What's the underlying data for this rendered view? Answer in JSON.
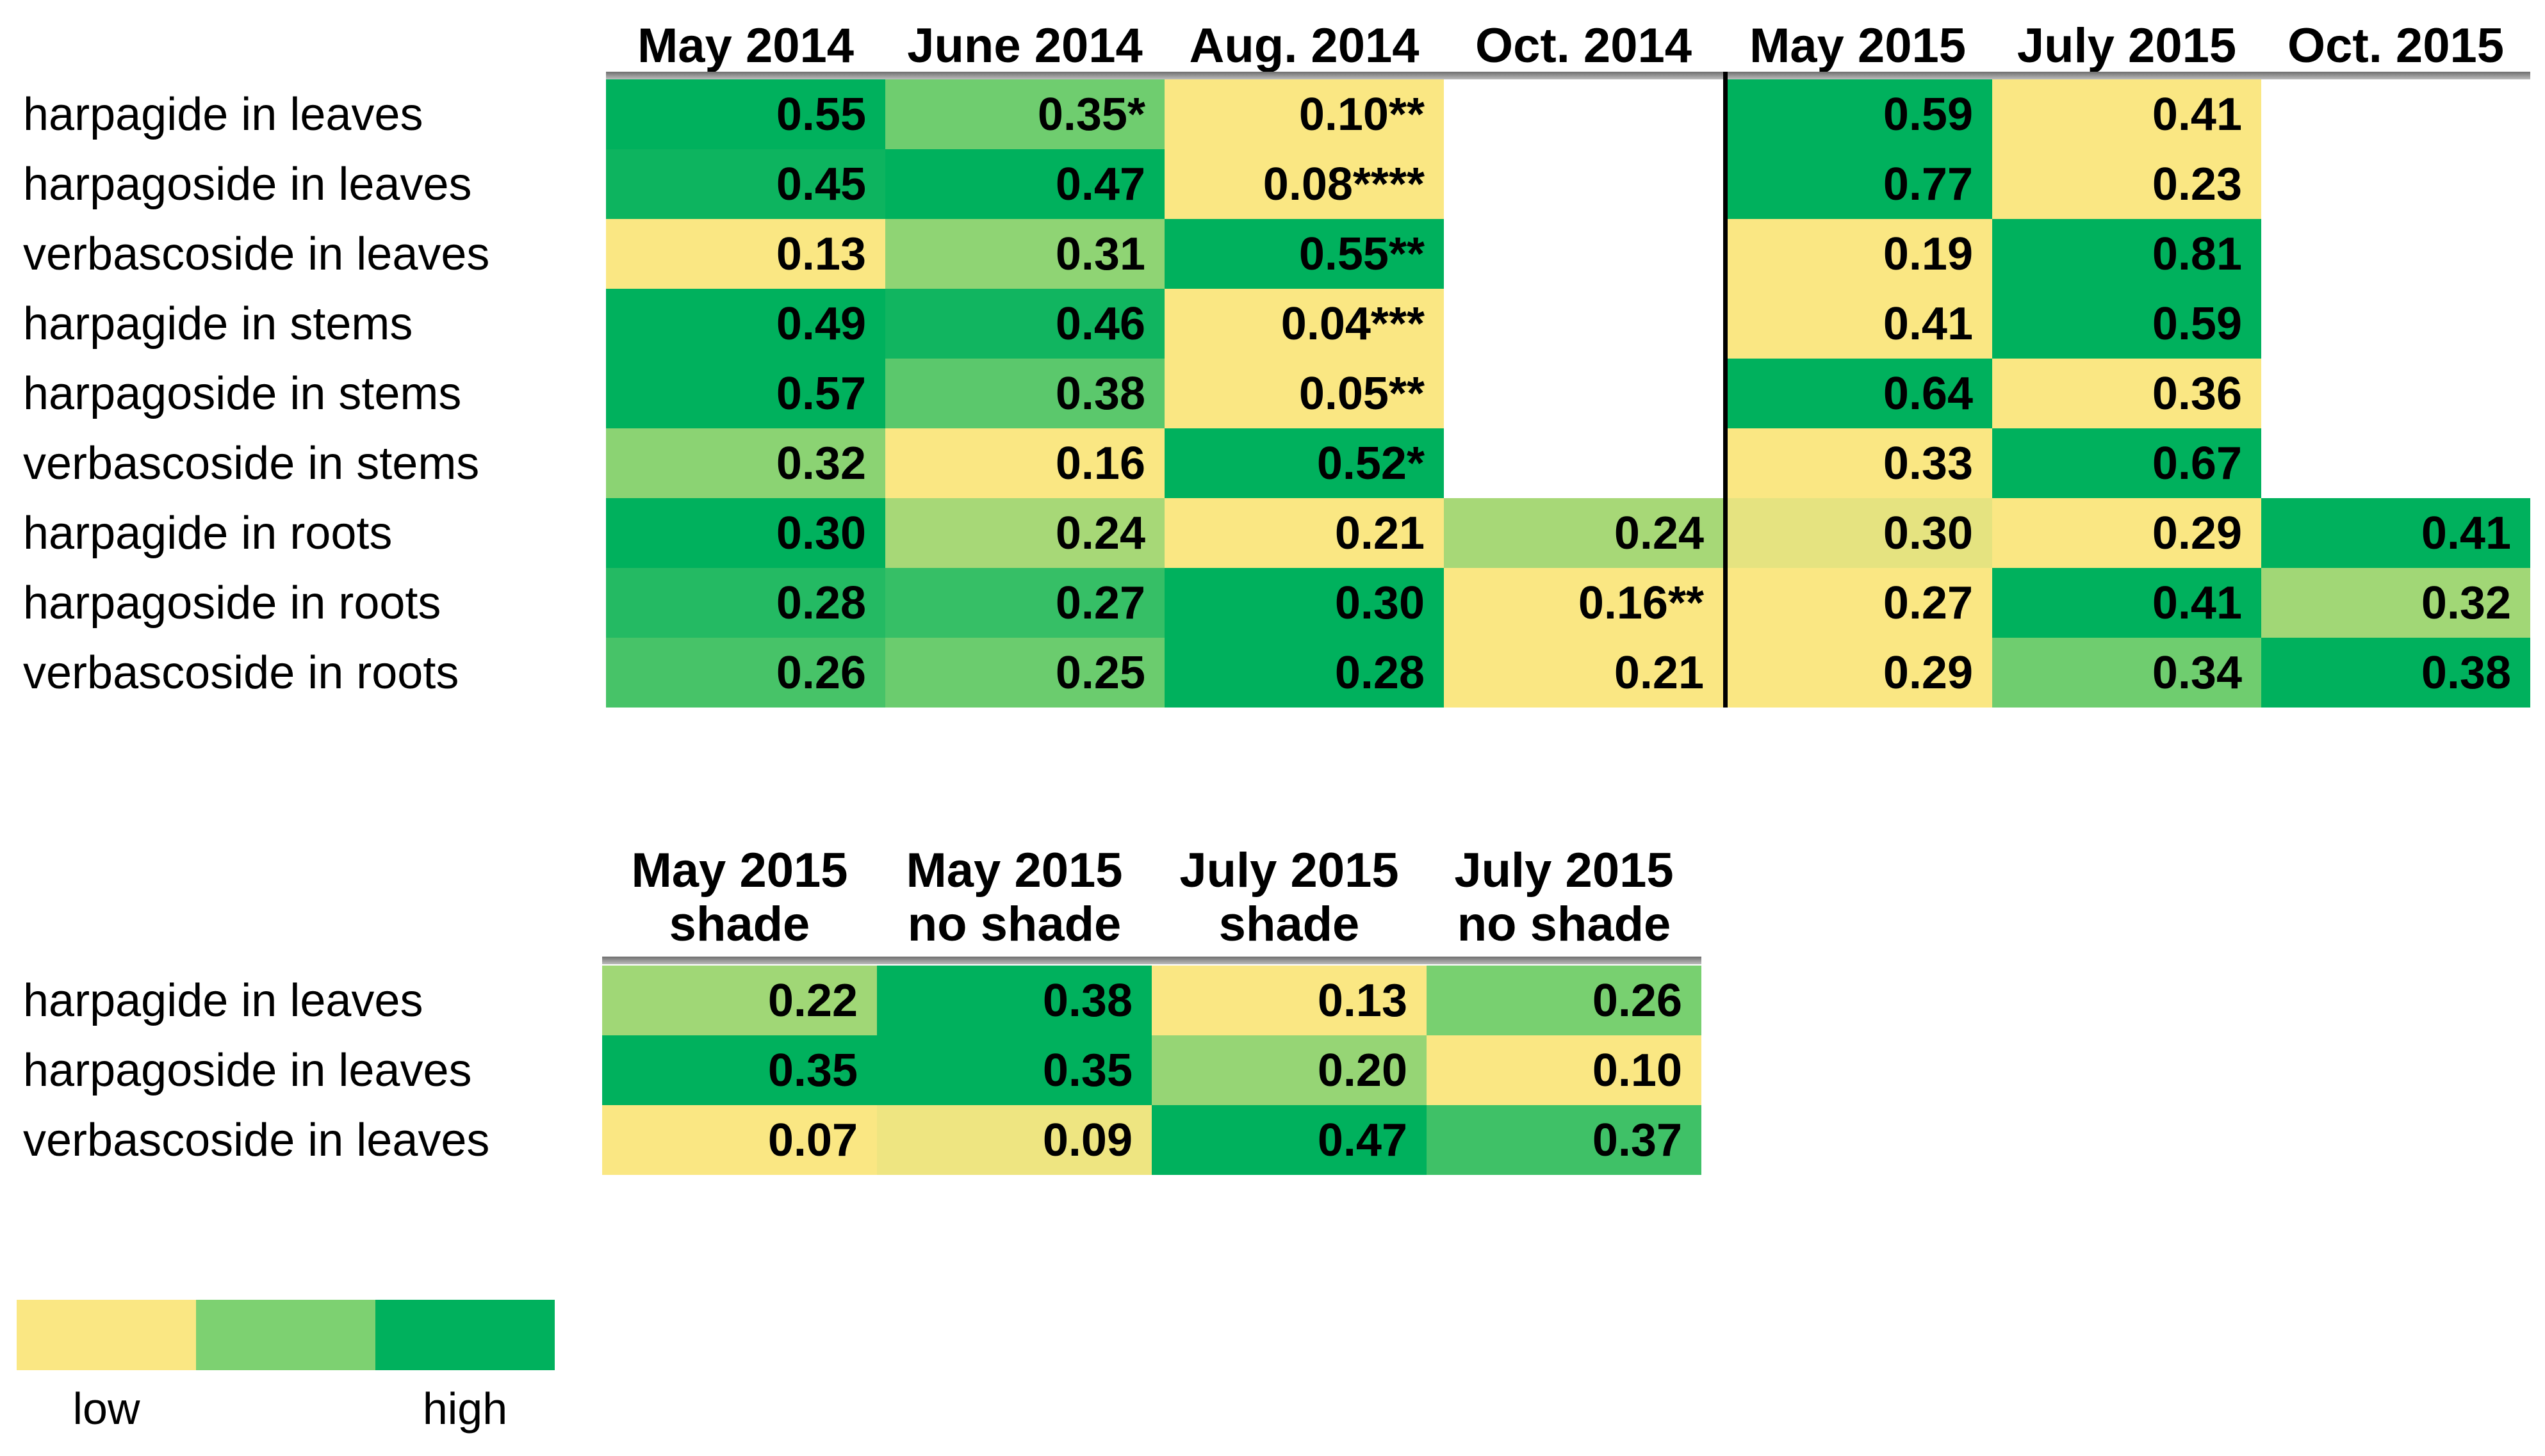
{
  "page": {
    "background": "#FFFFFF"
  },
  "palette": {
    "scale_low": "#FAE783",
    "scale_mid": "#7DD171",
    "scale_high": "#00B15D",
    "header_underline_top": "#6E6E6E",
    "header_underline_bottom": "#BDBDBD",
    "year_divider": "#000000",
    "text": "#000000"
  },
  "legend": {
    "low": "low",
    "high": "high"
  },
  "chart_data": [
    {
      "name": "seasonal-heatmap",
      "type": "heatmap",
      "title": "",
      "columns": [
        "May 2014",
        "June 2014",
        "Aug. 2014",
        "Oct. 2014",
        "May 2015",
        "July 2015",
        "Oct. 2015"
      ],
      "column_sections": [
        [
          0,
          1,
          2,
          3
        ],
        [
          4,
          5,
          6
        ]
      ],
      "rows": [
        {
          "label": "harpagide in leaves",
          "values": [
            "0.55",
            "0.35*",
            "0.10**",
            null,
            "0.59",
            "0.41",
            null
          ]
        },
        {
          "label": "harpagoside in leaves",
          "values": [
            "0.45",
            "0.47",
            "0.08****",
            null,
            "0.77",
            "0.23",
            null
          ]
        },
        {
          "label": "verbascoside in leaves",
          "values": [
            "0.13",
            "0.31",
            "0.55**",
            null,
            "0.19",
            "0.81",
            null
          ]
        },
        {
          "label": "harpagide in stems",
          "values": [
            "0.49",
            "0.46",
            "0.04***",
            null,
            "0.41",
            "0.59",
            null
          ]
        },
        {
          "label": "harpagoside in stems",
          "values": [
            "0.57",
            "0.38",
            "0.05**",
            null,
            "0.64",
            "0.36",
            null
          ]
        },
        {
          "label": "verbascoside in stems",
          "values": [
            "0.32",
            "0.16",
            "0.52*",
            null,
            "0.33",
            "0.67",
            null
          ]
        },
        {
          "label": "harpagide in roots",
          "values": [
            "0.30",
            "0.24",
            "0.21",
            "0.24",
            "0.30",
            "0.29",
            "0.41"
          ]
        },
        {
          "label": "harpagoside in roots",
          "values": [
            "0.28",
            "0.27",
            "0.30",
            "0.16**",
            "0.27",
            "0.41",
            "0.32"
          ]
        },
        {
          "label": "verbascoside in roots",
          "values": [
            "0.26",
            "0.25",
            "0.28",
            "0.21",
            "0.29",
            "0.34",
            "0.38"
          ]
        }
      ],
      "color_scale": {
        "low_label": "low",
        "high_label": "high",
        "description": "per row, scaled separately within each year section: yellow = low, light green = middle, green = high"
      }
    },
    {
      "name": "shade-heatmap",
      "type": "heatmap",
      "title": "",
      "columns": [
        "May 2015 shade",
        "May 2015 no shade",
        "July 2015 shade",
        "July 2015 no shade"
      ],
      "column_lines": [
        [
          "May 2015",
          "shade"
        ],
        [
          "May 2015",
          "no shade"
        ],
        [
          "July 2015",
          "shade"
        ],
        [
          "July 2015",
          "no shade"
        ]
      ],
      "column_sections": [
        [
          0,
          1,
          2,
          3
        ]
      ],
      "rows": [
        {
          "label": "harpagide in leaves",
          "values": [
            "0.22",
            "0.38",
            "0.13",
            "0.26"
          ]
        },
        {
          "label": "harpagoside in leaves",
          "values": [
            "0.35",
            "0.35",
            "0.20",
            "0.10"
          ]
        },
        {
          "label": "verbascoside in leaves",
          "values": [
            "0.07",
            "0.09",
            "0.47",
            "0.37"
          ]
        }
      ],
      "color_scale": {
        "low_label": "low",
        "high_label": "high",
        "description": "per row linear scale: yellow = low, light green = middle, green = high"
      }
    }
  ]
}
